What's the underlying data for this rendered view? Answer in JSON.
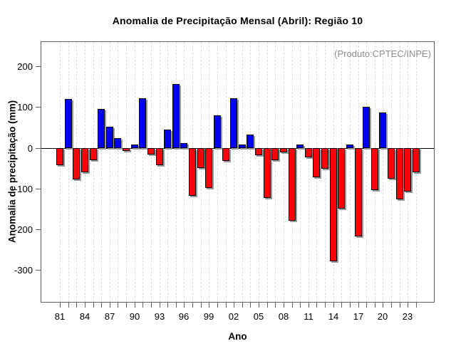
{
  "title": "Anomalia de Precipitação Mensal (Abril): Região 10",
  "annotation": "(Produto:CPTEC/INPE)",
  "chart_data": {
    "type": "bar",
    "title": "Anomalia de Precipitação Mensal (Abril): Região 10",
    "xlabel": "Ano",
    "ylabel": "Anomalia de precipitação (mm)",
    "x": [
      1981,
      1982,
      1983,
      1984,
      1985,
      1986,
      1987,
      1988,
      1989,
      1990,
      1991,
      1992,
      1993,
      1994,
      1995,
      1996,
      1997,
      1998,
      1999,
      2000,
      2001,
      2002,
      2003,
      2004,
      2005,
      2006,
      2007,
      2008,
      2009,
      2010,
      2011,
      2012,
      2013,
      2014,
      2015,
      2016,
      2017,
      2018,
      2019,
      2020,
      2021,
      2022,
      2023,
      2024
    ],
    "values": [
      -42,
      120,
      -77,
      -60,
      -30,
      97,
      52,
      25,
      -7,
      8,
      122,
      -16,
      -42,
      46,
      157,
      13,
      -117,
      -49,
      -98,
      80,
      -31,
      123,
      9,
      33,
      -17,
      -122,
      -29,
      -10,
      -178,
      8,
      -23,
      -71,
      -50,
      -279,
      -148,
      8,
      -217,
      102,
      -103,
      87,
      -75,
      -126,
      -107,
      -60
    ],
    "yticks": [
      200,
      100,
      0,
      -100,
      -200,
      -300
    ],
    "xtick_labels": [
      "81",
      "84",
      "87",
      "90",
      "93",
      "96",
      "99",
      "02",
      "05",
      "08",
      "11",
      "14",
      "17",
      "20",
      "23"
    ],
    "xtick_label_step": 3,
    "ylim": [
      -379,
      260
    ],
    "grid": "vertical-dashed-per-year",
    "legend": "none",
    "colors": {
      "positive": "#0000f0",
      "negative": "#fb0006",
      "bar_border": "#000000",
      "bar_shadow": "#9a9a9a",
      "grid": "#dedede",
      "annotation_text": "#8e8e8e",
      "axis": "#606060"
    }
  }
}
